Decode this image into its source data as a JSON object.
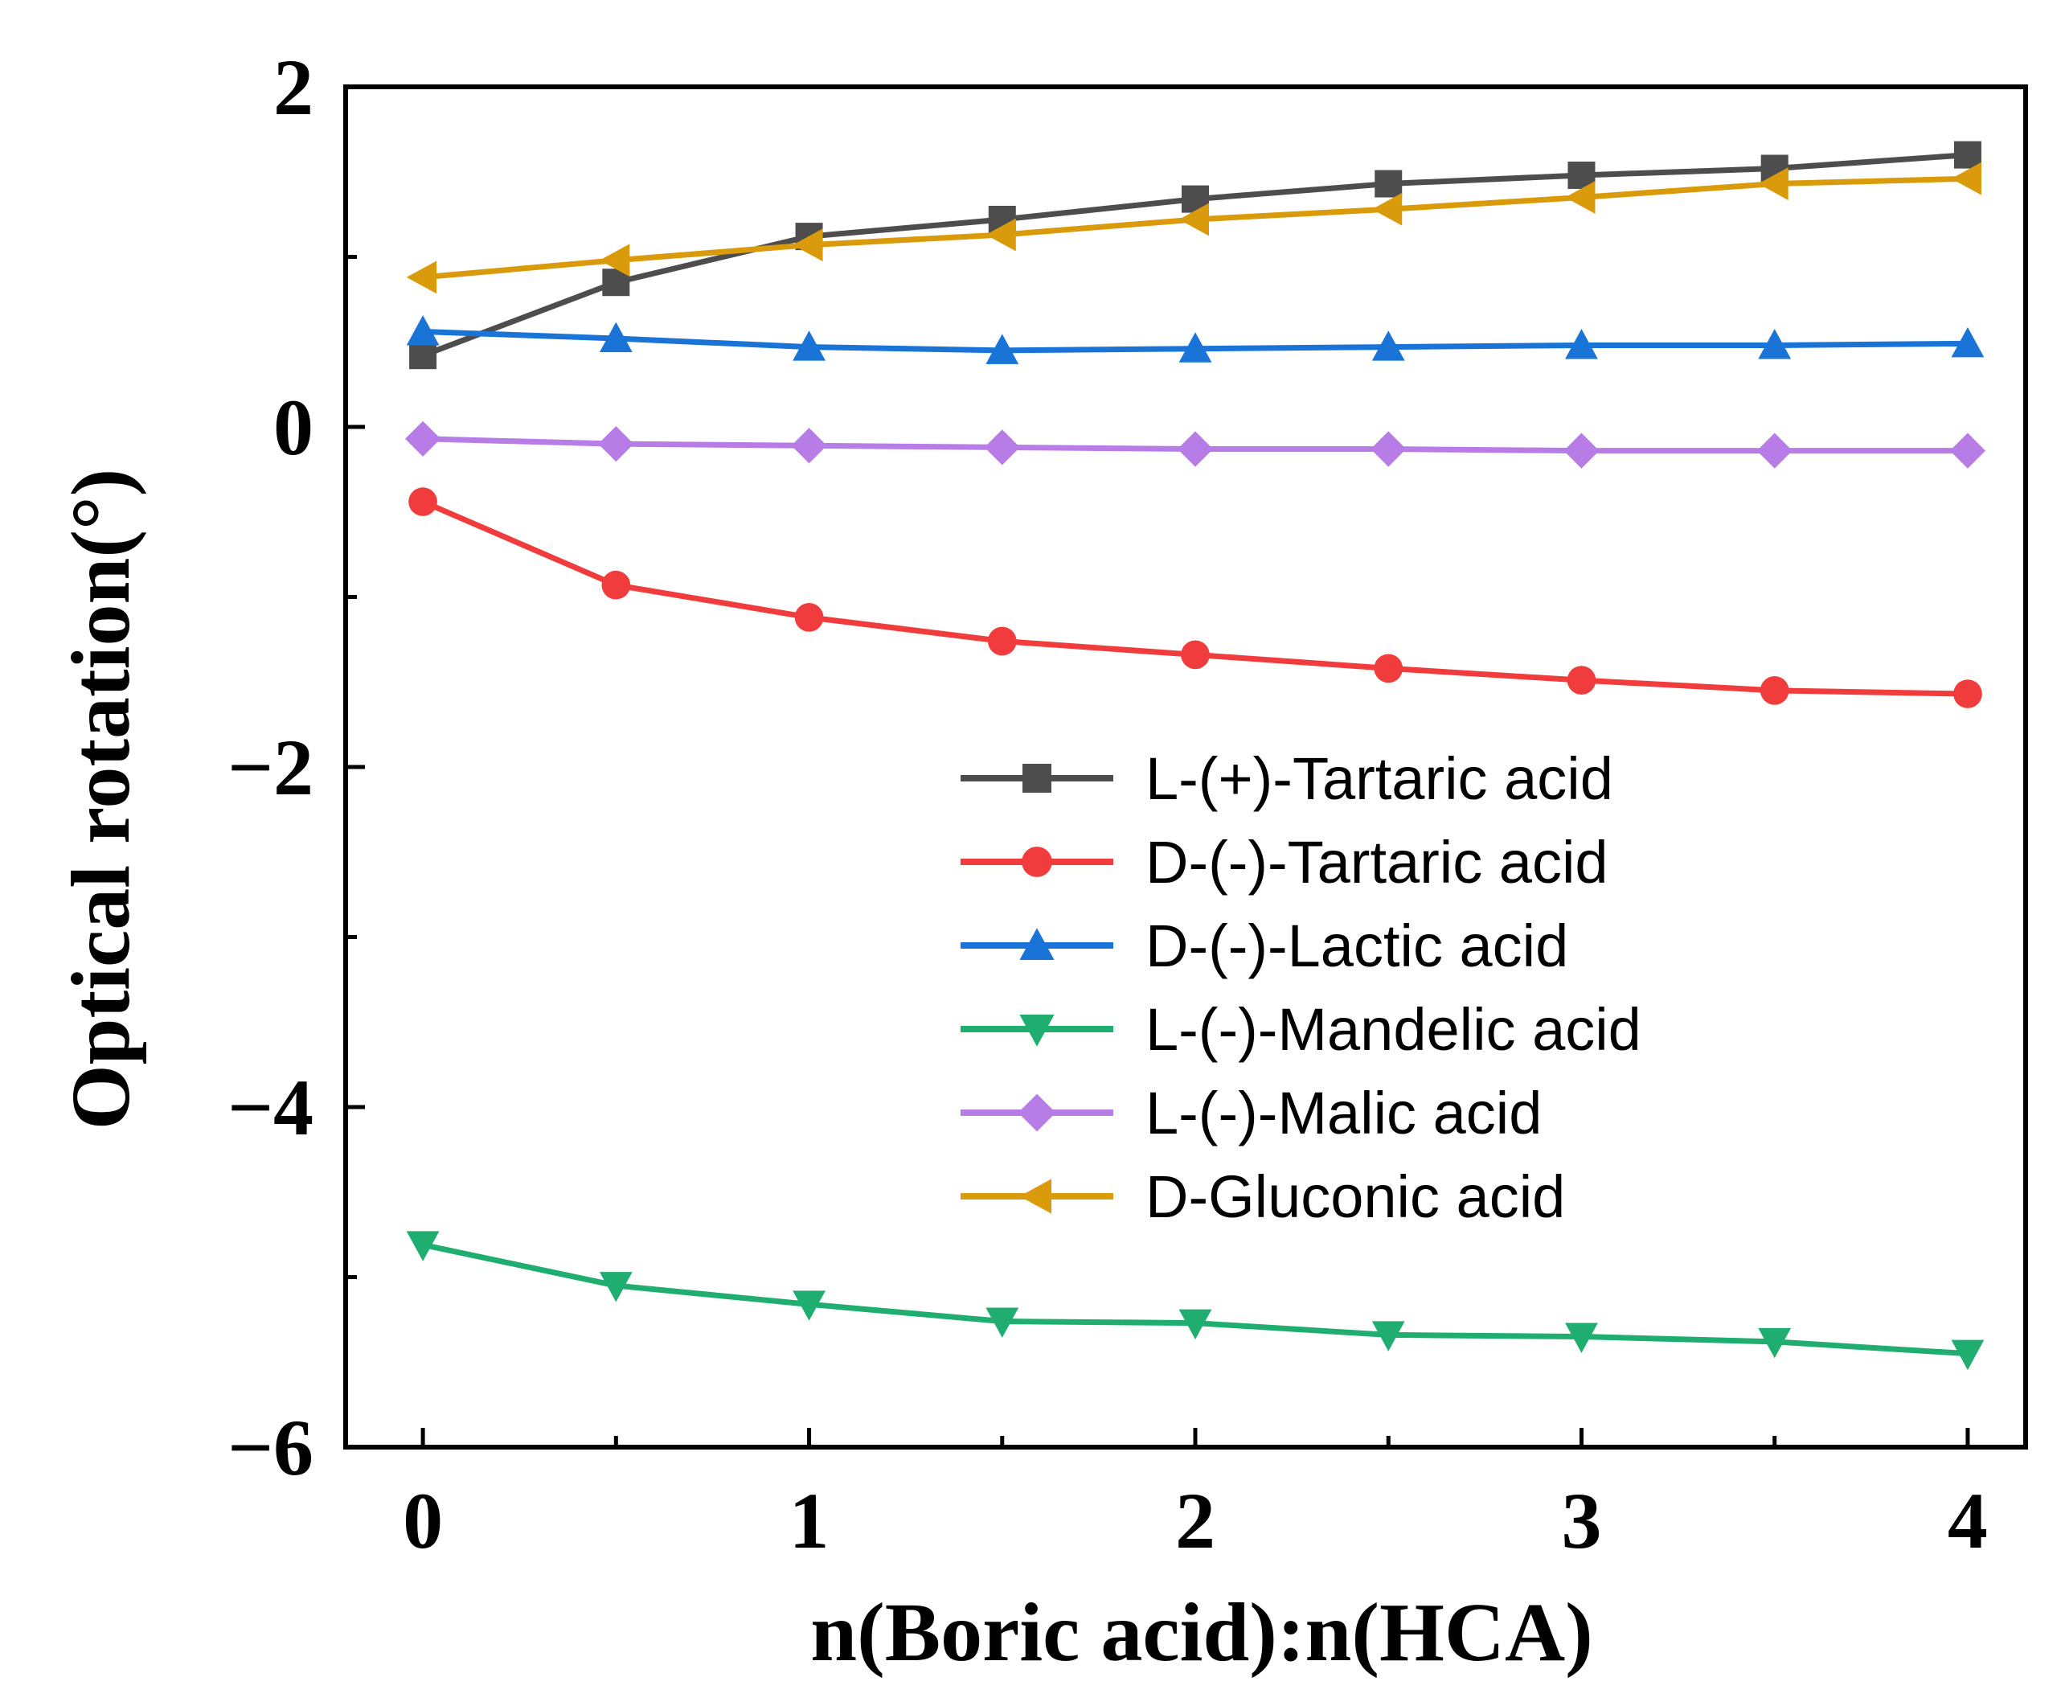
{
  "chart_data": {
    "type": "line",
    "title": "",
    "xlabel": "n(Boric acid):n(HCA)",
    "ylabel": "Optical rotation(°)",
    "xlim": [
      -0.2,
      4.15
    ],
    "ylim": [
      -6,
      2
    ],
    "x": [
      0,
      0.5,
      1,
      1.5,
      2,
      2.5,
      3,
      3.5,
      4
    ],
    "xticks": [
      {
        "value": 0,
        "label": "0"
      },
      {
        "value": 1,
        "label": "1"
      },
      {
        "value": 2,
        "label": "2"
      },
      {
        "value": 3,
        "label": "3"
      },
      {
        "value": 4,
        "label": "4"
      }
    ],
    "yticks": [
      {
        "value": 2,
        "label": "2"
      },
      {
        "value": 0,
        "label": "0"
      },
      {
        "value": -2,
        "label": "−2"
      },
      {
        "value": -4,
        "label": "−4"
      },
      {
        "value": -6,
        "label": "−6"
      }
    ],
    "legend_position": "center-right",
    "series": [
      {
        "name": "L-(+)-Tartaric acid",
        "color": "#4d4d4d",
        "marker": "square",
        "values": [
          0.42,
          0.85,
          1.12,
          1.22,
          1.34,
          1.43,
          1.48,
          1.52,
          1.6
        ]
      },
      {
        "name": "D-(-)-Tartaric acid",
        "color": "#f03c3c",
        "marker": "circle",
        "values": [
          -0.44,
          -0.93,
          -1.12,
          -1.26,
          -1.34,
          -1.42,
          -1.49,
          -1.55,
          -1.57
        ]
      },
      {
        "name": "D-(-)-Lactic acid",
        "color": "#1a73d6",
        "marker": "triangle-up",
        "values": [
          0.56,
          0.52,
          0.47,
          0.45,
          0.46,
          0.47,
          0.48,
          0.48,
          0.49
        ]
      },
      {
        "name": "L-(-)-Mandelic acid",
        "color": "#1fae6f",
        "marker": "triangle-down",
        "values": [
          -4.81,
          -5.05,
          -5.16,
          -5.26,
          -5.27,
          -5.34,
          -5.35,
          -5.38,
          -5.45
        ]
      },
      {
        "name": "L-(-)-Malic acid",
        "color": "#b87ce6",
        "marker": "diamond",
        "values": [
          -0.07,
          -0.1,
          -0.11,
          -0.12,
          -0.13,
          -0.13,
          -0.14,
          -0.14,
          -0.14
        ]
      },
      {
        "name": "D-Gluconic acid",
        "color": "#d99a0c",
        "marker": "triangle-left",
        "values": [
          0.88,
          0.98,
          1.07,
          1.13,
          1.22,
          1.28,
          1.35,
          1.43,
          1.46
        ]
      }
    ]
  }
}
